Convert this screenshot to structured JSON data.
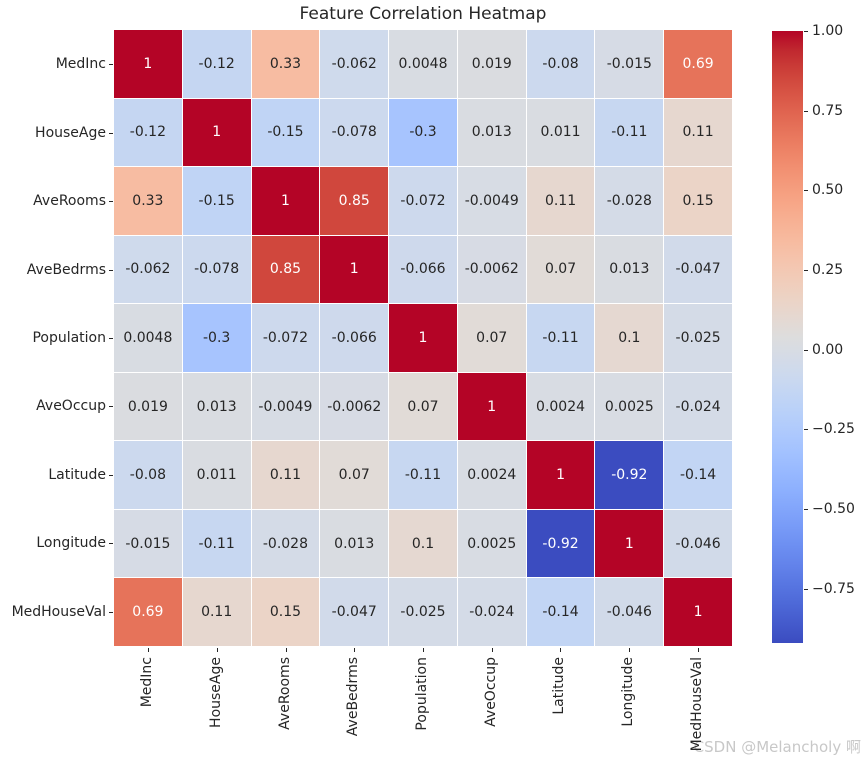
{
  "title": "Feature Correlation Heatmap",
  "watermark": "CSDN @Melancholy 啊",
  "chart_data": {
    "type": "heatmap",
    "title": "Feature Correlation Heatmap",
    "colormap": "coolwarm",
    "grid": "off",
    "legend_position": "colorbar-right",
    "features": [
      "MedInc",
      "HouseAge",
      "AveRooms",
      "AveBedrms",
      "Population",
      "AveOccup",
      "Latitude",
      "Longitude",
      "MedHouseVal"
    ],
    "matrix": [
      [
        "1",
        "-0.12",
        "0.33",
        "-0.062",
        "0.0048",
        "0.019",
        "-0.08",
        "-0.015",
        "0.69"
      ],
      [
        "-0.12",
        "1",
        "-0.15",
        "-0.078",
        "-0.3",
        "0.013",
        "0.011",
        "-0.11",
        "0.11"
      ],
      [
        "0.33",
        "-0.15",
        "1",
        "0.85",
        "-0.072",
        "-0.0049",
        "0.11",
        "-0.028",
        "0.15"
      ],
      [
        "-0.062",
        "-0.078",
        "0.85",
        "1",
        "-0.066",
        "-0.0062",
        "0.07",
        "0.013",
        "-0.047"
      ],
      [
        "0.0048",
        "-0.3",
        "-0.072",
        "-0.066",
        "1",
        "0.07",
        "-0.11",
        "0.1",
        "-0.025"
      ],
      [
        "0.019",
        "0.013",
        "-0.0049",
        "-0.0062",
        "0.07",
        "1",
        "0.0024",
        "0.0025",
        "-0.024"
      ],
      [
        "-0.08",
        "0.011",
        "0.11",
        "0.07",
        "-0.11",
        "0.0024",
        "1",
        "-0.92",
        "-0.14"
      ],
      [
        "-0.015",
        "-0.11",
        "-0.028",
        "0.013",
        "0.1",
        "0.0025",
        "-0.92",
        "1",
        "-0.046"
      ],
      [
        "0.69",
        "0.11",
        "0.15",
        "-0.047",
        "-0.025",
        "-0.024",
        "-0.14",
        "-0.046",
        "1"
      ]
    ],
    "vmin": -0.92,
    "vmax": 1.0,
    "colorbar_ticks": [
      "1.00",
      "0.75",
      "0.50",
      "0.25",
      "0.00",
      "−0.25",
      "−0.50",
      "−0.75"
    ],
    "colors": {
      "max_color": "#b40426",
      "mid_color": "#dddddd",
      "min_color": "#3b4cc0",
      "annotation_light": "#ffffff",
      "annotation_dark": "#262626",
      "gridline": "#ffffff",
      "watermark": "#c8c8c8"
    }
  }
}
